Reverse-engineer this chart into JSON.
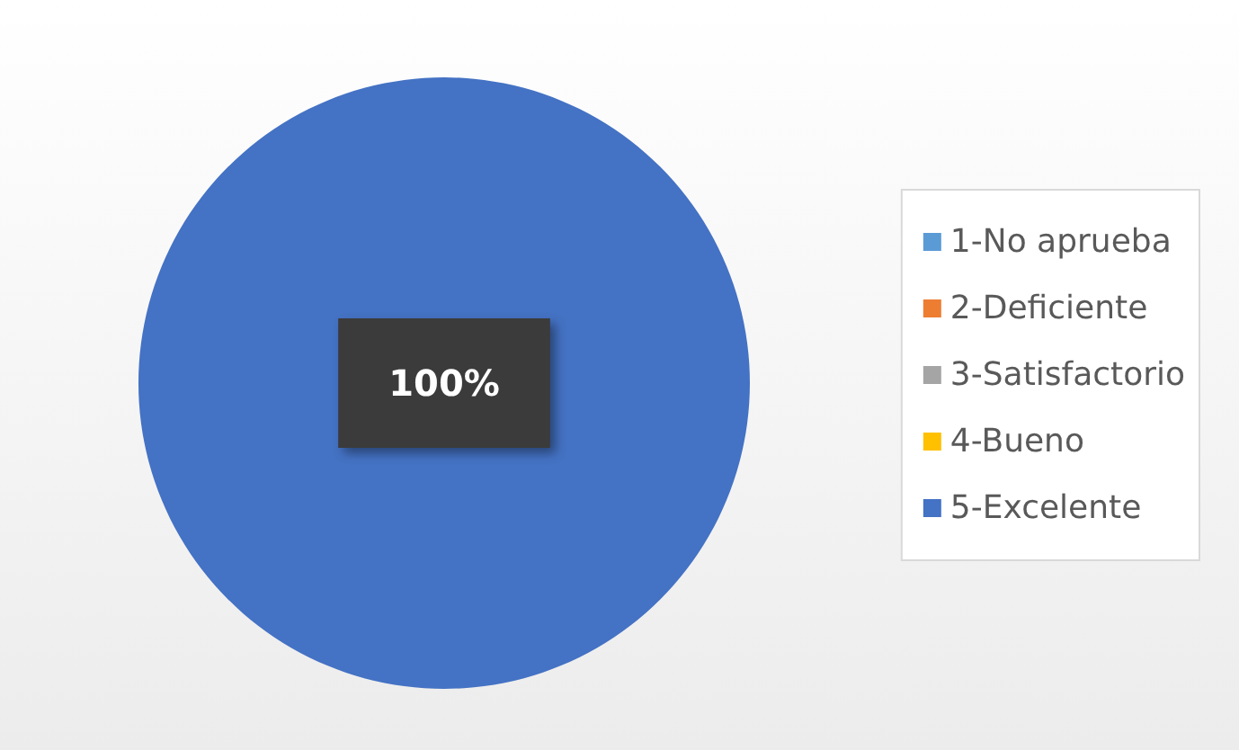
{
  "chart_data": {
    "type": "pie",
    "categories": [
      "1-No aprueba",
      "2-Deficiente",
      "3-Satisfactorio",
      "4-Bueno",
      "5-Excelente"
    ],
    "values": [
      0,
      0,
      0,
      0,
      100
    ],
    "colors": [
      "#5b9bd5",
      "#ed7d31",
      "#a5a5a5",
      "#ffc000",
      "#4472c4"
    ],
    "value_labels": [
      null,
      null,
      null,
      null,
      "100%"
    ],
    "legend": "right"
  }
}
